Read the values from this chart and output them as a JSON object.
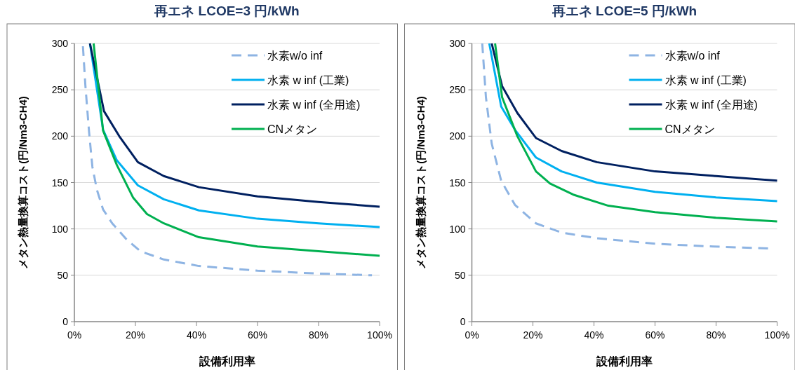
{
  "chart_data": [
    {
      "type": "line",
      "title": "再エネ LCOE=3 円/kWh",
      "xlabel": "設備利用率",
      "ylabel": "メタン熱量換算コスト(円/Nm3-CH4)",
      "xlim": [
        0,
        100
      ],
      "xticks": [
        {
          "value": 0,
          "label": "0%"
        },
        {
          "value": 20,
          "label": "20%"
        },
        {
          "value": 40,
          "label": "40%"
        },
        {
          "value": 60,
          "label": "60%"
        },
        {
          "value": 80,
          "label": "80%"
        },
        {
          "value": 100,
          "label": "100%"
        }
      ],
      "ylim": [
        0,
        300
      ],
      "yticks": [
        0,
        50,
        100,
        150,
        200,
        250,
        300
      ],
      "grid": "y",
      "legend": "top right",
      "series": [
        {
          "name": "水素w/o inf",
          "color": "#8eb4e3",
          "line_style": "dashed",
          "x": [
            2.8,
            3.6,
            4.8,
            5.9,
            7.4,
            9.4,
            12.4,
            17,
            21.6,
            29.3,
            40.8,
            60,
            79,
            97.5
          ],
          "values": [
            297,
            255,
            205,
            167,
            142,
            121,
            106,
            89,
            76,
            67,
            60,
            55,
            52,
            50
          ]
        },
        {
          "name": "水素 w inf (工業)",
          "color": "#00b0f0",
          "line_style": "solid",
          "x": [
            5.1,
            9.4,
            13.9,
            20.8,
            29.3,
            40.8,
            60,
            80,
            100
          ],
          "values": [
            300,
            207,
            174,
            147,
            132,
            120,
            111,
            106,
            102
          ]
        },
        {
          "name": "水素 w inf (全用途)",
          "color": "#002060",
          "line_style": "solid",
          "x": [
            5.1,
            9.7,
            14.7,
            20.8,
            29.3,
            40.8,
            60,
            80,
            100
          ],
          "values": [
            300,
            227,
            200,
            172,
            157,
            145,
            135,
            129,
            124
          ]
        },
        {
          "name": "CNメタン",
          "color": "#00b050",
          "line_style": "solid",
          "x": [
            6.3,
            9.4,
            13.9,
            19.2,
            23.8,
            29.3,
            40.8,
            60,
            80,
            100
          ],
          "values": [
            300,
            206,
            169,
            134,
            116,
            106,
            91,
            81,
            76,
            71
          ]
        }
      ]
    },
    {
      "type": "line",
      "title": "再エネ LCOE=5 円/kWh",
      "xlabel": "設備利用率",
      "ylabel": "メタン熱量換算コスト(円/Nm3-CH4)",
      "xlim": [
        0,
        100
      ],
      "xticks": [
        {
          "value": 0,
          "label": "0%"
        },
        {
          "value": 20,
          "label": "20%"
        },
        {
          "value": 40,
          "label": "40%"
        },
        {
          "value": 60,
          "label": "60%"
        },
        {
          "value": 80,
          "label": "80%"
        },
        {
          "value": 100,
          "label": "100%"
        }
      ],
      "ylim": [
        0,
        300
      ],
      "yticks": [
        0,
        50,
        100,
        150,
        200,
        250,
        300
      ],
      "grid": "y",
      "legend": "top right",
      "series": [
        {
          "name": "水素w/o inf",
          "color": "#8eb4e3",
          "line_style": "dashed",
          "x": [
            3.4,
            4.6,
            6.5,
            9.6,
            14.1,
            21,
            29.4,
            40.9,
            60,
            79,
            97.5
          ],
          "values": [
            300,
            242,
            192,
            152,
            126,
            106,
            96,
            90,
            84,
            81,
            79
          ]
        },
        {
          "name": "水素 w inf (工業)",
          "color": "#00b0f0",
          "line_style": "solid",
          "x": [
            5.7,
            9.6,
            14.1,
            21,
            29.4,
            40.9,
            60,
            80,
            100
          ],
          "values": [
            300,
            232,
            207,
            177,
            162,
            150,
            140,
            134,
            130
          ]
        },
        {
          "name": "水素 w inf (全用途)",
          "color": "#002060",
          "line_style": "solid",
          "x": [
            6.5,
            9.9,
            14.9,
            21,
            29.4,
            40.9,
            60,
            80,
            100
          ],
          "values": [
            300,
            254,
            225,
            198,
            184,
            172,
            162,
            157,
            152
          ]
        },
        {
          "name": "CNメタン",
          "color": "#00b050",
          "line_style": "solid",
          "x": [
            7.6,
            9.9,
            14.9,
            21,
            25.6,
            33.2,
            44.7,
            60,
            80,
            100
          ],
          "values": [
            300,
            242,
            200,
            162,
            149,
            137,
            125,
            118,
            112,
            108
          ]
        }
      ]
    }
  ]
}
